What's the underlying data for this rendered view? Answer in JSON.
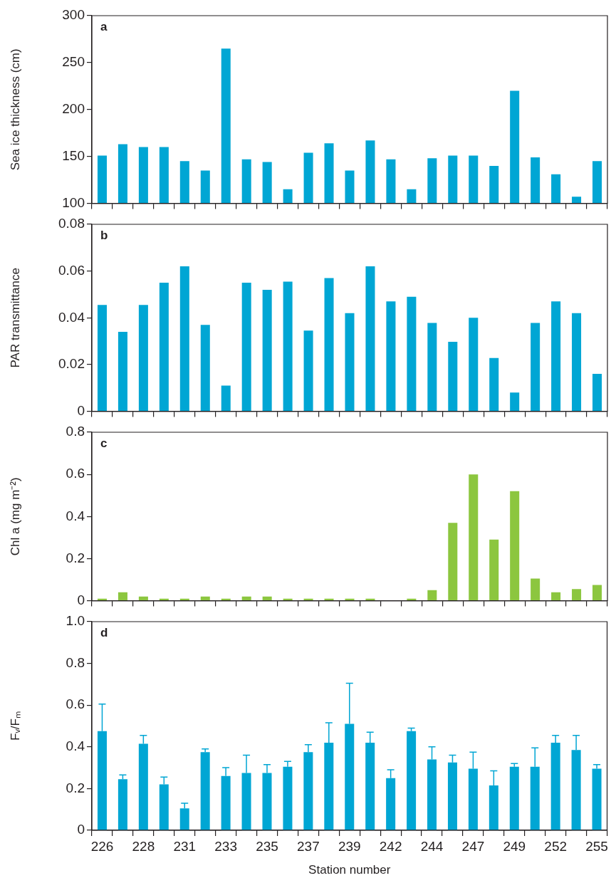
{
  "chart_data": [
    {
      "type": "bar",
      "title": "a",
      "ylabel": "Sea ice thickness (cm)",
      "categories": [
        "226",
        null,
        "228",
        null,
        "231",
        null,
        "233",
        null,
        "235",
        null,
        "237",
        null,
        "239",
        null,
        "242",
        null,
        "244",
        null,
        "247",
        null,
        "249",
        null,
        "252",
        null,
        "255"
      ],
      "color": "#00a6d4",
      "values": [
        151,
        163,
        160,
        160,
        145,
        135,
        265,
        147,
        144,
        115,
        154,
        164,
        135,
        167,
        147,
        115,
        148,
        151,
        151,
        140,
        220,
        149,
        131,
        107,
        145
      ],
      "ylim": [
        100,
        300
      ],
      "yticks": [
        100,
        150,
        200,
        250,
        300
      ],
      "tick_labels": "y"
    },
    {
      "type": "bar",
      "title": "b",
      "ylabel": "PAR transmittance",
      "categories": [
        "226",
        null,
        "228",
        null,
        "231",
        null,
        "233",
        null,
        "235",
        null,
        "237",
        null,
        "239",
        null,
        "242",
        null,
        "244",
        null,
        "247",
        null,
        "249",
        null,
        "252",
        null,
        "255"
      ],
      "color": "#00a6d4",
      "values": [
        0.0455,
        0.034,
        0.0455,
        0.055,
        0.062,
        0.037,
        0.011,
        0.055,
        0.052,
        0.0555,
        0.0345,
        0.057,
        0.042,
        0.062,
        0.047,
        0.049,
        0.0378,
        0.0297,
        0.04,
        0.0228,
        0.008,
        0.0378,
        0.047,
        0.042,
        0.016
      ],
      "ylim": [
        0,
        0.08
      ],
      "yticks": [
        0,
        0.02,
        0.04,
        0.06,
        0.08
      ],
      "tick_labels": "y"
    },
    {
      "type": "bar",
      "title": "c",
      "ylabel": "Chl a (mg m⁻²)",
      "categories": [
        "226",
        null,
        "228",
        null,
        "231",
        null,
        "233",
        null,
        "235",
        null,
        "237",
        null,
        "239",
        null,
        "242",
        null,
        "244",
        null,
        "247",
        null,
        "249",
        null,
        "252",
        null,
        "255"
      ],
      "color": "#8cc63f",
      "values": [
        0.01,
        0.04,
        0.02,
        0.01,
        0.01,
        0.02,
        0.01,
        0.02,
        0.02,
        0.01,
        0.01,
        0.01,
        0.01,
        0.01,
        0,
        0.01,
        0.05,
        0.37,
        0.6,
        0.29,
        0.52,
        0.105,
        0.04,
        0.055,
        0.075
      ],
      "ylim": [
        0,
        0.8
      ],
      "yticks": [
        0,
        0.2,
        0.4,
        0.6,
        0.8
      ],
      "tick_labels": "y"
    },
    {
      "type": "bar",
      "title": "d",
      "ylabel": "Fᵥ/Fₘ",
      "xlabel": "Station number",
      "categories": [
        "226",
        null,
        "228",
        null,
        "231",
        null,
        "233",
        null,
        "235",
        null,
        "237",
        null,
        "239",
        null,
        "242",
        null,
        "244",
        null,
        "247",
        null,
        "249",
        null,
        "252",
        null,
        "255"
      ],
      "color": "#00a6d4",
      "values": [
        0.475,
        0.245,
        0.415,
        0.22,
        0.105,
        0.375,
        0.26,
        0.275,
        0.275,
        0.305,
        0.375,
        0.42,
        0.51,
        0.42,
        0.25,
        0.475,
        0.34,
        0.325,
        0.295,
        0.215,
        0.305,
        0.305,
        0.42,
        0.385,
        0.295
      ],
      "errors": [
        [
          0.475,
          0.605
        ],
        [
          0.245,
          0.265
        ],
        [
          0.415,
          0.455
        ],
        [
          0.22,
          0.255
        ],
        [
          0.105,
          0.13
        ],
        [
          0.375,
          0.39
        ],
        [
          0.26,
          0.3
        ],
        [
          0.275,
          0.36
        ],
        [
          0.275,
          0.315
        ],
        [
          0.305,
          0.33
        ],
        [
          0.375,
          0.41
        ],
        [
          0.42,
          0.515
        ],
        [
          0.51,
          0.705
        ],
        [
          0.42,
          0.47
        ],
        [
          0.25,
          0.29
        ],
        [
          0.475,
          0.49
        ],
        [
          0.34,
          0.4
        ],
        [
          0.325,
          0.36
        ],
        [
          0.295,
          0.375
        ],
        [
          0.215,
          0.285
        ],
        [
          0.305,
          0.32
        ],
        [
          0.305,
          0.395
        ],
        [
          0.42,
          0.455
        ],
        [
          0.385,
          0.455
        ],
        [
          0.295,
          0.315
        ]
      ],
      "ylim": [
        0,
        1.0
      ],
      "yticks": [
        0,
        0.2,
        0.4,
        0.6,
        0.8,
        {
          "value": 1.0,
          "label": "1.0"
        }
      ]
    }
  ]
}
